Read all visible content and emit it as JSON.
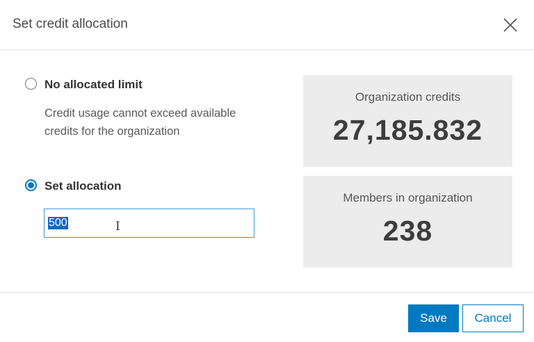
{
  "dialog": {
    "title": "Set credit allocation",
    "close_icon": "close-icon"
  },
  "options": [
    {
      "label": "No allocated limit",
      "selected": false,
      "description": "Credit usage cannot exceed available credits for the organization"
    },
    {
      "label": "Set allocation",
      "selected": true
    }
  ],
  "allocation_input": {
    "value": "500"
  },
  "stats": {
    "org_credits_label": "Organization credits",
    "org_credits_value": "27,185.832",
    "members_label": "Members in organization",
    "members_value": "238"
  },
  "footer": {
    "save_label": "Save",
    "cancel_label": "Cancel"
  },
  "colors": {
    "accent": "#0079c1",
    "card_bg": "#ececec"
  }
}
